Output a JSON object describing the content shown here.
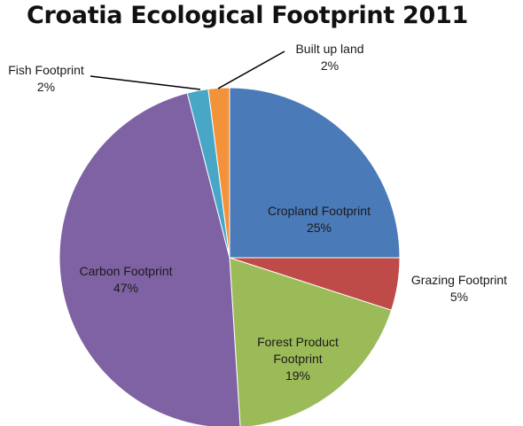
{
  "chart_data": {
    "type": "pie",
    "title": "Croatia Ecological Footprint 2011",
    "categories": [
      "Cropland Footprint",
      "Grazing Footprint",
      "Forest Product Footprint",
      "Carbon Footprint",
      "Fish Footprint",
      "Built up land"
    ],
    "values": [
      25,
      5,
      19,
      47,
      2,
      2
    ],
    "value_labels": [
      "25%",
      "5%",
      "19%",
      "47%",
      "2%",
      "2%"
    ],
    "colors": [
      "#4a7ab8",
      "#bf4b48",
      "#9bbb59",
      "#7f62a3",
      "#48a7c6",
      "#f2923a"
    ],
    "legend": "none"
  }
}
